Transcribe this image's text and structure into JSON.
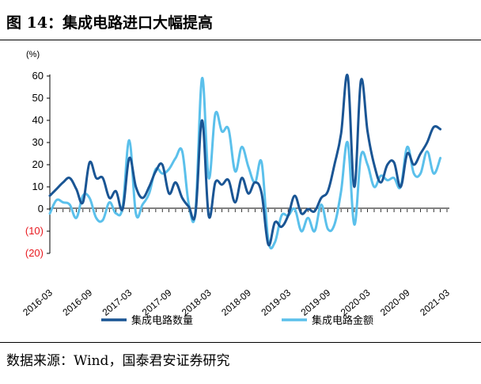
{
  "figure": {
    "title": "图 14：集成电路进口大幅提高",
    "source": "数据来源：Wind，国泰君安证券研究"
  },
  "colors": {
    "series1": "#1a5594",
    "series2": "#5bc0eb",
    "negative_tick": "#e8181e",
    "axis": "#000000"
  },
  "chart_data": {
    "type": "line",
    "unit_label": "(%)",
    "ylim": [
      -20,
      60
    ],
    "yticks": [
      60,
      50,
      40,
      30,
      20,
      10,
      0,
      -10,
      -20
    ],
    "ytick_labels": [
      "60",
      "50",
      "40",
      "30",
      "20",
      "10",
      "0",
      "(10)",
      "(20)"
    ],
    "xtick_labels": [
      "2016-03",
      "2016-09",
      "2017-03",
      "2017-09",
      "2018-03",
      "2018-09",
      "2019-03",
      "2019-09",
      "2020-03",
      "2020-09",
      "2021-03"
    ],
    "x_start": "2016-03",
    "x_end": "2021-03",
    "grid": false,
    "legend_position": "bottom",
    "series": [
      {
        "name": "集成电路数量",
        "color": "#1a5594",
        "values": [
          6,
          9,
          12,
          14,
          9,
          3,
          21,
          14,
          14,
          5,
          8,
          0,
          23,
          10,
          5,
          10,
          17,
          20,
          7,
          12,
          5,
          1,
          -2,
          40,
          -3,
          12,
          11,
          13,
          3,
          14,
          7,
          12,
          7,
          -16,
          -6,
          -8,
          -3,
          6,
          -2,
          0,
          -1,
          5,
          8,
          20,
          34,
          60,
          10,
          58,
          35,
          20,
          12,
          20,
          21,
          10,
          25,
          20,
          25,
          30,
          37,
          36
        ]
      },
      {
        "name": "集成电路金额",
        "color": "#5bc0eb",
        "values": [
          -2,
          4,
          3,
          2,
          -4,
          6,
          5,
          -4,
          -5,
          3,
          -2,
          1,
          31,
          -2,
          2,
          7,
          18,
          16,
          18,
          23,
          26,
          2,
          -1,
          59,
          14,
          43,
          35,
          36,
          17,
          28,
          19,
          12,
          21,
          -14,
          -15,
          -3,
          -3,
          0,
          -10,
          -4,
          -10,
          2,
          -9,
          -7,
          8,
          30,
          -7,
          24,
          20,
          10,
          15,
          13,
          14,
          10,
          28,
          16,
          16,
          26,
          16,
          23
        ]
      }
    ]
  }
}
